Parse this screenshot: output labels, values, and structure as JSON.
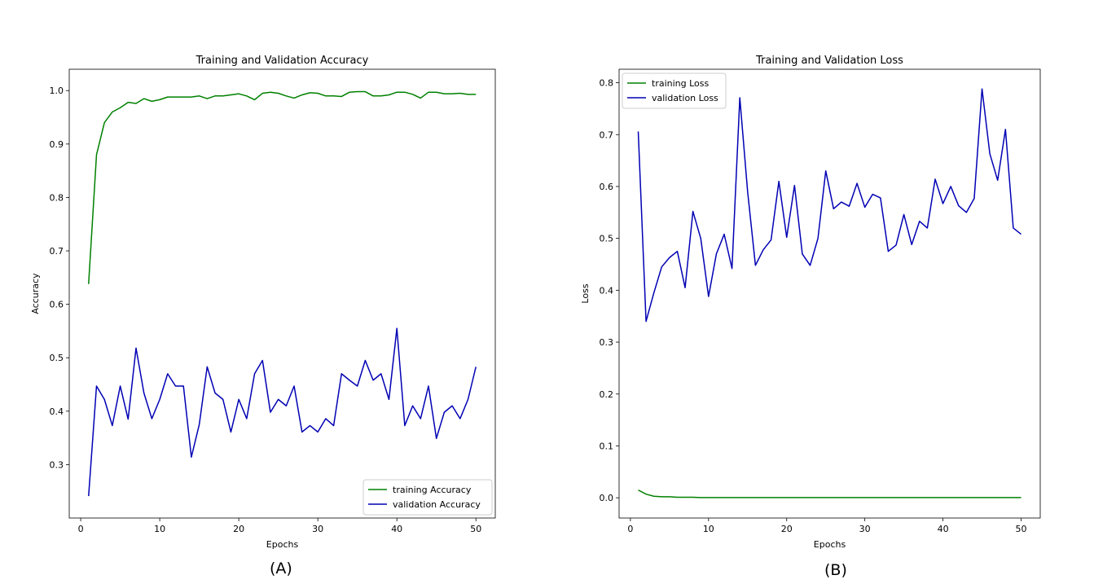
{
  "captions": [
    "(A)",
    "(B)"
  ],
  "colors": {
    "training": "#008000",
    "validation": "#0000b4"
  },
  "chart_data": [
    {
      "type": "line",
      "title": "Training and Validation Accuracy",
      "xlabel": "Epochs",
      "ylabel": "Accuracy",
      "xlim": [
        -1.45,
        52.45
      ],
      "ylim": [
        0.2,
        1.04
      ],
      "xticks": [
        0,
        10,
        20,
        30,
        40,
        50
      ],
      "xtick_labels": [
        "0",
        "10",
        "20",
        "30",
        "40",
        "50"
      ],
      "yticks": [
        0.3,
        0.4,
        0.5,
        0.6,
        0.7,
        0.8,
        0.9,
        1.0
      ],
      "ytick_labels": [
        "0.3",
        "0.4",
        "0.5",
        "0.6",
        "0.7",
        "0.8",
        "0.9",
        "1.0"
      ],
      "grid": false,
      "legend_position": "lower-right",
      "x": [
        1,
        2,
        3,
        4,
        5,
        6,
        7,
        8,
        9,
        10,
        11,
        12,
        13,
        14,
        15,
        16,
        17,
        18,
        19,
        20,
        21,
        22,
        23,
        24,
        25,
        26,
        27,
        28,
        29,
        30,
        31,
        32,
        33,
        34,
        35,
        36,
        37,
        38,
        39,
        40,
        41,
        42,
        43,
        44,
        45,
        46,
        47,
        48,
        49,
        50
      ],
      "series": [
        {
          "name": "training Accuracy",
          "color": "#008000",
          "values": [
            0.638,
            0.88,
            0.94,
            0.96,
            0.968,
            0.978,
            0.976,
            0.985,
            0.98,
            0.983,
            0.988,
            0.988,
            0.988,
            0.988,
            0.99,
            0.985,
            0.99,
            0.99,
            0.992,
            0.994,
            0.99,
            0.983,
            0.995,
            0.997,
            0.995,
            0.99,
            0.986,
            0.992,
            0.996,
            0.995,
            0.99,
            0.99,
            0.989,
            0.997,
            0.998,
            0.998,
            0.99,
            0.99,
            0.992,
            0.997,
            0.997,
            0.993,
            0.986,
            0.997,
            0.997,
            0.994,
            0.994,
            0.995,
            0.993,
            0.993
          ]
        },
        {
          "name": "validation Accuracy",
          "color": "#0000b4",
          "values": [
            0.241,
            0.447,
            0.422,
            0.373,
            0.447,
            0.385,
            0.518,
            0.434,
            0.386,
            0.422,
            0.47,
            0.447,
            0.447,
            0.314,
            0.375,
            0.483,
            0.434,
            0.422,
            0.361,
            0.422,
            0.386,
            0.47,
            0.495,
            0.398,
            0.422,
            0.41,
            0.447,
            0.361,
            0.373,
            0.361,
            0.386,
            0.373,
            0.47,
            0.458,
            0.447,
            0.495,
            0.458,
            0.47,
            0.422,
            0.555,
            0.373,
            0.41,
            0.386,
            0.447,
            0.349,
            0.398,
            0.41,
            0.386,
            0.422,
            0.483
          ]
        }
      ]
    },
    {
      "type": "line",
      "title": "Training and Validation Loss",
      "xlabel": "Epochs",
      "ylabel": "Loss",
      "xlim": [
        -1.45,
        52.45
      ],
      "ylim": [
        -0.039,
        0.826
      ],
      "xticks": [
        0,
        10,
        20,
        30,
        40,
        50
      ],
      "xtick_labels": [
        "0",
        "10",
        "20",
        "30",
        "40",
        "50"
      ],
      "yticks": [
        0.0,
        0.1,
        0.2,
        0.3,
        0.4,
        0.5,
        0.6,
        0.7,
        0.8
      ],
      "ytick_labels": [
        "0.0",
        "0.1",
        "0.2",
        "0.3",
        "0.4",
        "0.5",
        "0.6",
        "0.7",
        "0.8"
      ],
      "grid": false,
      "legend_position": "upper-left",
      "x": [
        1,
        2,
        3,
        4,
        5,
        6,
        7,
        8,
        9,
        10,
        11,
        12,
        13,
        14,
        15,
        16,
        17,
        18,
        19,
        20,
        21,
        22,
        23,
        24,
        25,
        26,
        27,
        28,
        29,
        30,
        31,
        32,
        33,
        34,
        35,
        36,
        37,
        38,
        39,
        40,
        41,
        42,
        43,
        44,
        45,
        46,
        47,
        48,
        49,
        50
      ],
      "series": [
        {
          "name": "training Loss",
          "color": "#008000",
          "values": [
            0.015,
            0.007,
            0.003,
            0.002,
            0.002,
            0.001,
            0.001,
            0.001,
            0.0005,
            0.0005,
            0.0005,
            0.0005,
            0.0005,
            0.0005,
            0.0005,
            0.0005,
            0.0005,
            0.0005,
            0.0005,
            0.0005,
            0.0005,
            0.0005,
            0.0005,
            0.0005,
            0.0005,
            0.0005,
            0.0005,
            0.0005,
            0.0005,
            0.0005,
            0.0005,
            0.0005,
            0.0005,
            0.0005,
            0.0005,
            0.0005,
            0.0005,
            0.0005,
            0.0005,
            0.0005,
            0.0005,
            0.0005,
            0.0005,
            0.0005,
            0.0005,
            0.0005,
            0.0005,
            0.0005,
            0.0005,
            0.0005
          ]
        },
        {
          "name": "validation Loss",
          "color": "#0000b4",
          "values": [
            0.706,
            0.34,
            0.395,
            0.445,
            0.463,
            0.475,
            0.405,
            0.552,
            0.5,
            0.388,
            0.47,
            0.508,
            0.442,
            0.771,
            0.59,
            0.448,
            0.478,
            0.497,
            0.61,
            0.502,
            0.602,
            0.47,
            0.448,
            0.5,
            0.63,
            0.557,
            0.57,
            0.562,
            0.606,
            0.56,
            0.585,
            0.578,
            0.475,
            0.487,
            0.546,
            0.488,
            0.533,
            0.52,
            0.614,
            0.567,
            0.6,
            0.563,
            0.55,
            0.577,
            0.788,
            0.663,
            0.612,
            0.71,
            0.52,
            0.508
          ]
        }
      ]
    }
  ]
}
